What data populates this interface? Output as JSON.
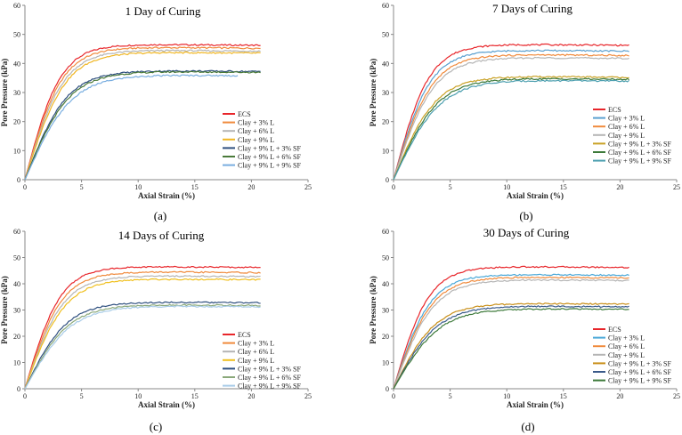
{
  "figure": {
    "panels": [
      {
        "caption": "(a)"
      },
      {
        "caption": "(b)"
      },
      {
        "caption": "(c)"
      },
      {
        "caption": "(d)"
      }
    ]
  },
  "chart_data": [
    {
      "type": "line",
      "title": "1 Day of Curing",
      "xlabel": "Axial Strain (%)",
      "ylabel": "Pore Pressure (kPa)",
      "xlim": [
        0,
        25
      ],
      "ylim": [
        0,
        60
      ],
      "xticks": [
        0,
        5,
        10,
        15,
        20,
        25
      ],
      "yticks": [
        0,
        10,
        20,
        30,
        40,
        50,
        60
      ],
      "grid": false,
      "legend_position": "right",
      "series": [
        {
          "name": "ECS",
          "color": "#e8262b",
          "peak": 46.5,
          "x_end": 20.8
        },
        {
          "name": "Clay + 3% L",
          "color": "#f08a3c",
          "peak": 45.5,
          "x_end": 20.8
        },
        {
          "name": "Clay + 6% L",
          "color": "#b5b5b5",
          "peak": 44.5,
          "x_end": 20.8
        },
        {
          "name": "Clay + 9% L",
          "color": "#f0b622",
          "peak": 43.8,
          "x_end": 20.8
        },
        {
          "name": "Clay + 9% L + 3% SF",
          "color": "#2e4f7f",
          "peak": 37.5,
          "x_end": 20.8
        },
        {
          "name": "Clay + 9% L + 6% SF",
          "color": "#4a7a3a",
          "peak": 37.2,
          "x_end": 20.8
        },
        {
          "name": "Clay + 9% L + 9% SF",
          "color": "#79aee0",
          "peak": 36.0,
          "x_end": 18.8
        }
      ]
    },
    {
      "type": "line",
      "title": "7 Days of Curing",
      "xlabel": "Axial Strain (%)",
      "ylabel": "Pore Pressure (kPa)",
      "xlim": [
        0,
        25
      ],
      "ylim": [
        0,
        60
      ],
      "xticks": [
        0,
        5,
        10,
        15,
        20,
        25
      ],
      "yticks": [
        0,
        10,
        20,
        30,
        40,
        50,
        60
      ],
      "grid": false,
      "legend_position": "right",
      "series": [
        {
          "name": "ECS",
          "color": "#e8262b",
          "peak": 46.5,
          "x_end": 20.8
        },
        {
          "name": "Clay + 3% L",
          "color": "#5aa0d0",
          "peak": 44.5,
          "x_end": 20.8
        },
        {
          "name": "Clay + 6% L",
          "color": "#f08a3c",
          "peak": 43.0,
          "x_end": 20.8
        },
        {
          "name": "Clay + 9% L",
          "color": "#b5b5b5",
          "peak": 42.0,
          "x_end": 20.8
        },
        {
          "name": "Clay + 9% L + 3% SF",
          "color": "#c9a227",
          "peak": 35.5,
          "x_end": 20.8
        },
        {
          "name": "Clay + 9% L + 6% SF",
          "color": "#3d7a3a",
          "peak": 34.8,
          "x_end": 20.8
        },
        {
          "name": "Clay + 9% L + 9% SF",
          "color": "#4ea0b0",
          "peak": 34.2,
          "x_end": 20.8
        }
      ]
    },
    {
      "type": "line",
      "title": "14 Days of Curing",
      "xlabel": "Axial Strain (%)",
      "ylabel": "Pore Pressure (kPa)",
      "xlim": [
        0,
        25
      ],
      "ylim": [
        0,
        60
      ],
      "xticks": [
        0,
        5,
        10,
        15,
        20,
        25
      ],
      "yticks": [
        0,
        10,
        20,
        30,
        40,
        50,
        60
      ],
      "grid": false,
      "legend_position": "right",
      "series": [
        {
          "name": "ECS",
          "color": "#e8262b",
          "peak": 46.5,
          "x_end": 20.8
        },
        {
          "name": "Clay + 3% L",
          "color": "#f08a3c",
          "peak": 44.5,
          "x_end": 20.8
        },
        {
          "name": "Clay + 6% L",
          "color": "#b5b5b5",
          "peak": 43.0,
          "x_end": 20.8
        },
        {
          "name": "Clay + 9% L",
          "color": "#f0c020",
          "peak": 41.8,
          "x_end": 20.8
        },
        {
          "name": "Clay + 9% L + 3% SF",
          "color": "#2e4f7f",
          "peak": 33.0,
          "x_end": 20.8
        },
        {
          "name": "Clay + 9% L + 6% SF",
          "color": "#8aa87a",
          "peak": 32.0,
          "x_end": 20.8
        },
        {
          "name": "Clay + 9% L + 9% SF",
          "color": "#a8cce8",
          "peak": 31.5,
          "x_end": 20.8
        }
      ]
    },
    {
      "type": "line",
      "title": "30 Days of Curing",
      "xlabel": "Axial Strain (%)",
      "ylabel": "Pore Pressure (kPa)",
      "xlim": [
        0,
        25
      ],
      "ylim": [
        0,
        60
      ],
      "xticks": [
        0,
        5,
        10,
        15,
        20,
        25
      ],
      "yticks": [
        0,
        10,
        20,
        30,
        40,
        50,
        60
      ],
      "grid": false,
      "legend_position": "right",
      "series": [
        {
          "name": "ECS",
          "color": "#e8262b",
          "peak": 46.5,
          "x_end": 20.8
        },
        {
          "name": "Clay + 3% L",
          "color": "#4aa8d8",
          "peak": 43.5,
          "x_end": 20.8
        },
        {
          "name": "Clay + 6% L",
          "color": "#f08a3c",
          "peak": 42.5,
          "x_end": 20.8
        },
        {
          "name": "Clay + 9% L",
          "color": "#b5b5b5",
          "peak": 41.5,
          "x_end": 20.8
        },
        {
          "name": "Clay + 9% L + 3% SF",
          "color": "#c9901a",
          "peak": 32.5,
          "x_end": 20.8
        },
        {
          "name": "Clay + 9% L + 6% SF",
          "color": "#3a5a8a",
          "peak": 31.5,
          "x_end": 20.8
        },
        {
          "name": "Clay + 9% L + 9% SF",
          "color": "#3d7a3a",
          "peak": 30.5,
          "x_end": 20.8
        }
      ]
    }
  ]
}
